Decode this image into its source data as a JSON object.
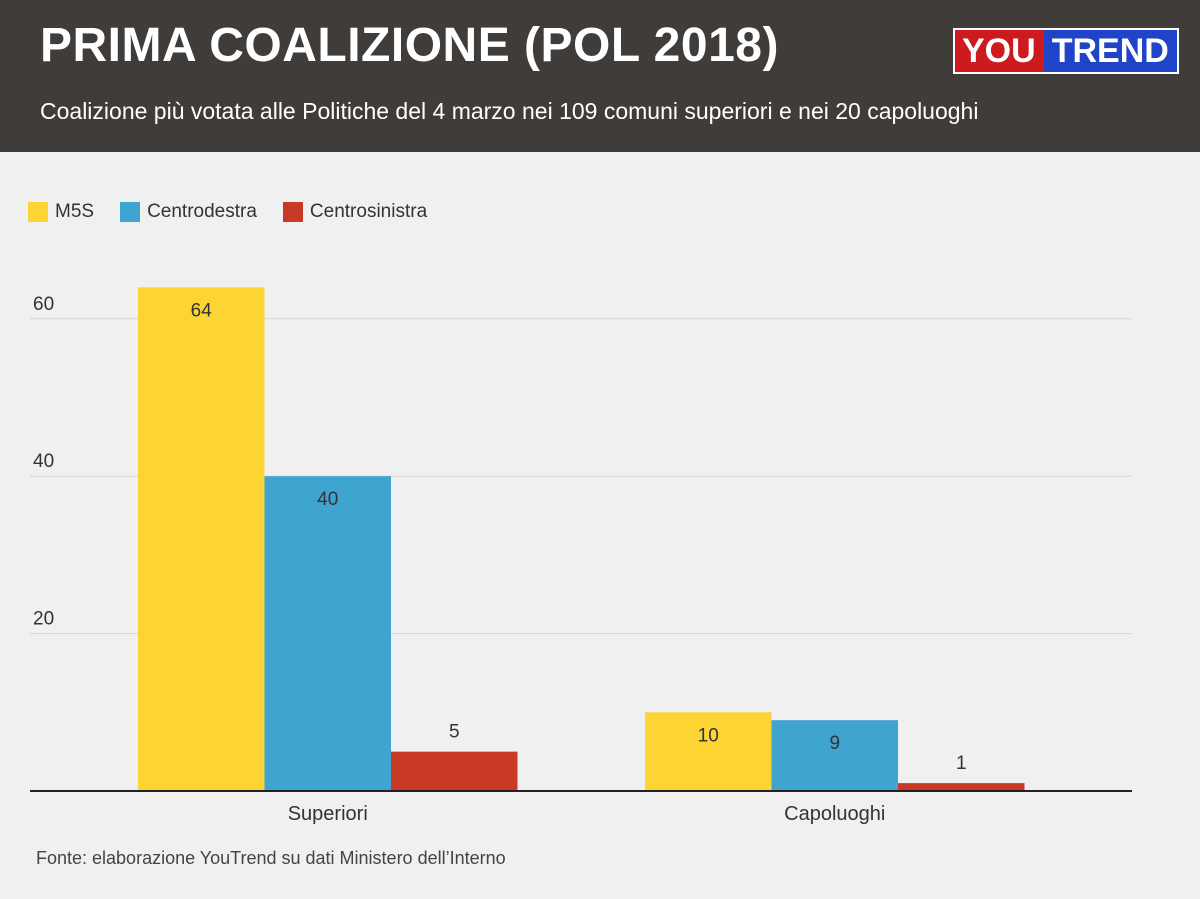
{
  "header": {
    "title": "PRIMA COALIZIONE (POL 2018)",
    "subtitle": "Coalizione più votata alle Politiche del 4 marzo nei 109 comuni superiori e nei 20 capoluoghi",
    "logo_part1": "YOU",
    "logo_part2": "TREND"
  },
  "footer": {
    "source": "Fonte: elaborazione YouTrend su dati Ministero dell’Interno"
  },
  "colors": {
    "M5S": "#fcd535",
    "Centrodestra": "#40a4d0",
    "Centrosinistra": "#c83a27"
  },
  "chart_data": {
    "type": "bar",
    "title": "PRIMA COALIZIONE (POL 2018)",
    "categories": [
      "Superiori",
      "Capoluoghi"
    ],
    "series": [
      {
        "name": "M5S",
        "values": [
          64,
          10
        ]
      },
      {
        "name": "Centrodestra",
        "values": [
          40,
          9
        ]
      },
      {
        "name": "Centrosinistra",
        "values": [
          5,
          1
        ]
      }
    ],
    "yticks": [
      20,
      40,
      60
    ],
    "ylim": [
      0,
      70
    ],
    "grid": true,
    "legend": "top-left",
    "xlabel": "",
    "ylabel": ""
  }
}
